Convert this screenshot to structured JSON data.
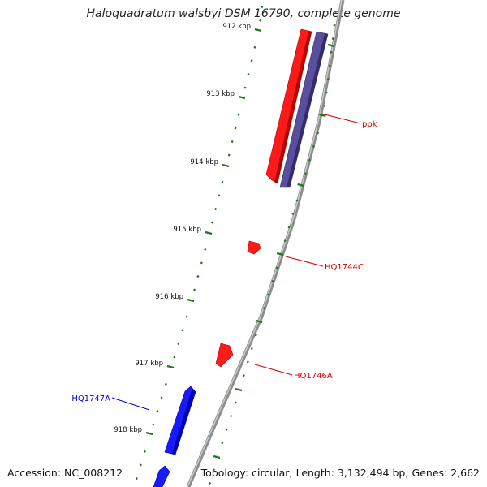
{
  "title": "Haloquadratum walsbyi DSM 16790, complete genome",
  "accession": "Accession: NC_008212",
  "summary": "Topology: circular; Length: 3,132,494 bp; Genes: 2,662",
  "colors": {
    "backbone": "#8c8c8c",
    "ticks": "#1f7a1f",
    "forward_gene": "#ff1a1a",
    "reverse_gene": "#5a4f9e",
    "blue_gene": "#1a1aff",
    "label_red": "#cc0000",
    "label_blue": "#0000cc"
  },
  "scale_labels": [
    "912 kbp",
    "913 kbp",
    "914 kbp",
    "915 kbp",
    "916 kbp",
    "917 kbp",
    "918 kbp"
  ],
  "genes": [
    {
      "label": "ppk"
    },
    {
      "label": "HQ1744C"
    },
    {
      "label": "HQ1746A"
    },
    {
      "label": "HQ1747A"
    }
  ]
}
